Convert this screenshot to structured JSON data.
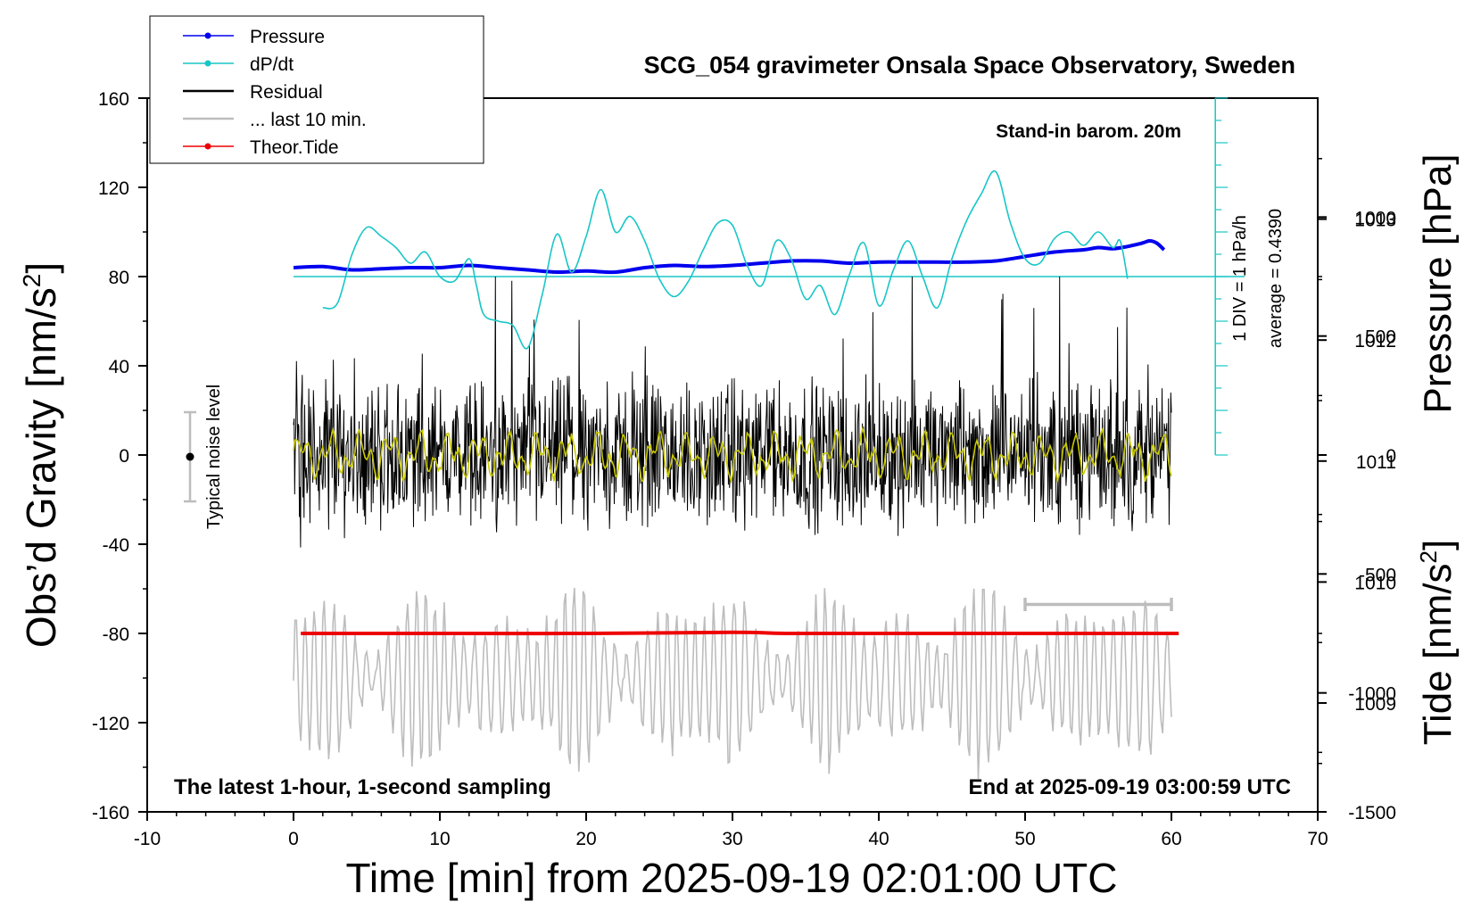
{
  "chart_data": {
    "type": "line",
    "title": "SCG_054 gravimeter Onsala Space Observatory, Sweden",
    "xlabel": "Time [min] from 2025-09-19 02:01:00 UTC",
    "ylabel": "Obs’d Gravity [nm/s",
    "ylabel_sup": "2",
    "ylabel_end": "]",
    "right_label_pressure": "Pressure [hPa]",
    "right_label_tide": "Tide [nm/s",
    "right_label_tide_sup": "2",
    "right_label_tide_end": "]",
    "xlim": [
      -10,
      70
    ],
    "ylim": [
      -160,
      160
    ],
    "x_ticks": [
      -10,
      0,
      10,
      20,
      30,
      40,
      50,
      60,
      70
    ],
    "y_ticks": [
      160,
      120,
      80,
      40,
      0,
      -40,
      -80,
      -120,
      -160
    ],
    "pressure_axis": {
      "ticks": [
        1013,
        1012,
        1011,
        1010,
        1009
      ],
      "range": [
        1008.1,
        1014.0
      ]
    },
    "tide_axis": {
      "ticks": [
        1000,
        500,
        0,
        -500,
        -1000,
        -1500
      ],
      "range": [
        -1500,
        1500
      ]
    },
    "annotations": {
      "stand_in": "Stand-in barom. 20m",
      "div_label": "1 DIV = 1 hPa/h",
      "average_label": "average = 0.4390",
      "noise_label": "Typical noise level",
      "bottom_left": "The latest 1-hour, 1-second sampling",
      "bottom_right": "End at 2025-09-19 03:00:59 UTC"
    },
    "legend": [
      {
        "name": "Pressure",
        "color": "#0000ee",
        "marker": "dot"
      },
      {
        "name": "dP/dt",
        "color": "#19c6c6",
        "marker": "dot"
      },
      {
        "name": "Residual",
        "color": "#000000",
        "marker": "line"
      },
      {
        "name": "... last 10 min.",
        "color": "#bdbdbd",
        "marker": "line"
      },
      {
        "name": "Theor.Tide",
        "color": "#ee0000",
        "marker": "dot"
      }
    ],
    "series": [
      {
        "name": "Pressure",
        "color": "#0000ee",
        "x": [
          0,
          2,
          4,
          6,
          8,
          10,
          12,
          14,
          16,
          18,
          20,
          22,
          24,
          26,
          28,
          30,
          32,
          34,
          36,
          38,
          40,
          42,
          44,
          46,
          48,
          50,
          52,
          54,
          55,
          56,
          57,
          58,
          58.5,
          59,
          59.5
        ],
        "y": [
          84,
          84.5,
          83,
          83.5,
          84,
          84,
          85,
          84,
          83,
          82,
          82.5,
          82,
          84,
          85,
          84.5,
          85,
          86,
          87,
          87,
          86,
          86.5,
          86.5,
          86.5,
          86.5,
          87,
          89,
          91,
          92,
          93,
          92.5,
          93.5,
          95,
          96,
          95,
          92
        ]
      },
      {
        "name": "dP/dt",
        "color": "#19c6c6",
        "x": [
          2,
          3,
          4,
          5,
          6,
          7,
          8,
          9,
          10,
          11,
          12,
          12.5,
          13,
          14,
          15,
          16,
          17,
          18,
          19,
          20,
          21,
          22,
          23,
          24,
          25,
          26,
          27,
          28,
          29,
          30,
          31,
          32,
          33,
          34,
          35,
          36,
          37,
          38,
          39,
          40,
          41,
          42,
          43,
          44,
          45,
          46,
          47,
          48,
          49,
          50,
          51,
          52,
          53,
          54,
          55,
          56,
          56.5,
          57
        ],
        "y": [
          66,
          68,
          90,
          102,
          98,
          93,
          86,
          91,
          80,
          78,
          88,
          76,
          63,
          60,
          58,
          48,
          72,
          99,
          82,
          98,
          119,
          100,
          107,
          96,
          79,
          71,
          78,
          92,
          104,
          103,
          85,
          76,
          96,
          88,
          70,
          76,
          63,
          81,
          95,
          67,
          83,
          96,
          80,
          66,
          88,
          105,
          117,
          127,
          104,
          88,
          86,
          97,
          100,
          94,
          100,
          93,
          96,
          79
        ]
      },
      {
        "name": "Theor.Tide",
        "color": "#ee0000",
        "x": [
          0.5,
          10,
          20,
          30,
          34,
          40,
          50,
          60.5
        ],
        "y": [
          -80,
          -80,
          -80,
          -79.5,
          -80,
          -80,
          -80,
          -80
        ]
      }
    ]
  }
}
